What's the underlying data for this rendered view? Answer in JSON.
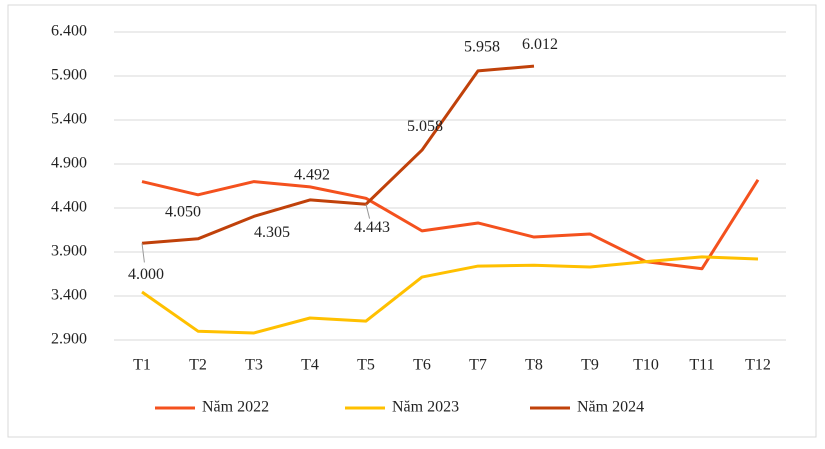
{
  "chart_data": {
    "type": "line",
    "categories": [
      "T1",
      "T2",
      "T3",
      "T4",
      "T5",
      "T6",
      "T7",
      "T8",
      "T9",
      "T10",
      "T11",
      "T12"
    ],
    "ylim": [
      2900,
      6400
    ],
    "yticks": [
      {
        "value": 2900,
        "label": "2.900"
      },
      {
        "value": 3400,
        "label": "3.400"
      },
      {
        "value": 3900,
        "label": "3.900"
      },
      {
        "value": 4400,
        "label": "4.400"
      },
      {
        "value": 4900,
        "label": "4.900"
      },
      {
        "value": 5400,
        "label": "5.400"
      },
      {
        "value": 5900,
        "label": "5.900"
      },
      {
        "value": 6400,
        "label": "6.400"
      }
    ],
    "grid": true,
    "legend": "bottom",
    "series": [
      {
        "name": "Năm 2022",
        "color": "#f4511e",
        "values": [
          4700,
          4550,
          4700,
          4640,
          4510,
          4140,
          4230,
          4070,
          4105,
          3790,
          3710,
          4720
        ]
      },
      {
        "name": "Năm 2023",
        "color": "#ffc000",
        "values": [
          3445,
          3000,
          2980,
          3150,
          3115,
          3615,
          3740,
          3750,
          3730,
          3790,
          3845,
          3820
        ]
      },
      {
        "name": "Năm 2024",
        "color": "#c0410a",
        "values": [
          4000,
          4050,
          4305,
          4492,
          4443,
          5058,
          5958,
          6012,
          null,
          null,
          null,
          null
        ],
        "value_labels": [
          "4.000",
          "4.050",
          "4.305",
          "4.492",
          "4.443",
          "5.058",
          "5.958",
          "6.012",
          null,
          null,
          null,
          null
        ]
      }
    ]
  }
}
